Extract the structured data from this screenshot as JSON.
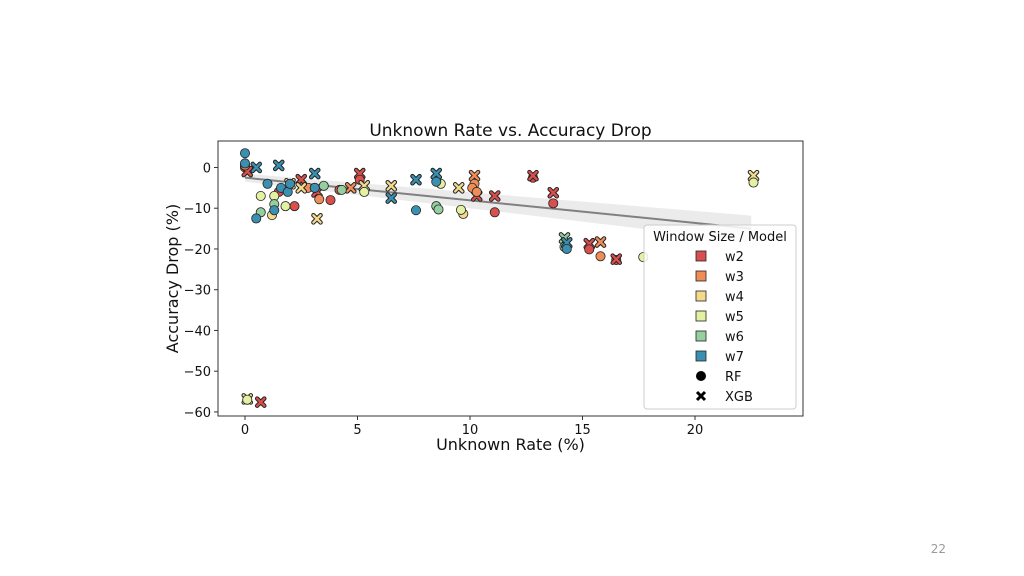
{
  "slide": {
    "page_number": "22"
  },
  "chart_data": {
    "type": "scatter",
    "title": "Unknown Rate vs. Accuracy Drop",
    "xlabel": "Unknown Rate (%)",
    "ylabel": "Accuracy Drop (%)",
    "xlim": [
      -1.2,
      24.8
    ],
    "ylim": [
      -61,
      6.5
    ],
    "xticks": [
      0,
      5,
      10,
      15,
      20
    ],
    "yticks": [
      0,
      -10,
      -20,
      -30,
      -40,
      -50,
      -60
    ],
    "grid": false,
    "legend": {
      "title": "Window Size / Model",
      "placement": "right",
      "entries": [
        {
          "label": "w2",
          "marker": "square",
          "color": "#d7504e"
        },
        {
          "label": "w3",
          "marker": "square",
          "color": "#ef8d59"
        },
        {
          "label": "w4",
          "marker": "square",
          "color": "#f4d98c"
        },
        {
          "label": "w5",
          "marker": "square",
          "color": "#e4f0a2"
        },
        {
          "label": "w6",
          "marker": "square",
          "color": "#95cf9f"
        },
        {
          "label": "w7",
          "marker": "square",
          "color": "#3b8fb0"
        },
        {
          "label": "RF",
          "marker": "circle",
          "color": "#000000"
        },
        {
          "label": "XGB",
          "marker": "x",
          "color": "#000000"
        }
      ]
    },
    "trendline": {
      "from": [
        0,
        -2.5
      ],
      "to": [
        22.5,
        -15
      ],
      "band_color": "#e6e6e6",
      "line_color": "#808080"
    },
    "series": [
      {
        "name": "w2",
        "color": "#d7504e",
        "points": [
          {
            "x": 0,
            "y": 0,
            "m": "o"
          },
          {
            "x": 0.1,
            "y": -1,
            "m": "x"
          },
          {
            "x": 0.7,
            "y": -57.6,
            "m": "x"
          },
          {
            "x": 1.5,
            "y": -6,
            "m": "o"
          },
          {
            "x": 2.2,
            "y": -9.5,
            "m": "o"
          },
          {
            "x": 2.5,
            "y": -3,
            "m": "x"
          },
          {
            "x": 3.2,
            "y": -6,
            "m": "x"
          },
          {
            "x": 3.8,
            "y": -8,
            "m": "o"
          },
          {
            "x": 4.2,
            "y": -5.5,
            "m": "o"
          },
          {
            "x": 5.1,
            "y": -1.5,
            "m": "x"
          },
          {
            "x": 5.1,
            "y": -3,
            "m": "o"
          },
          {
            "x": 10.3,
            "y": -7,
            "m": "x"
          },
          {
            "x": 11.1,
            "y": -7,
            "m": "x"
          },
          {
            "x": 11.1,
            "y": -11,
            "m": "o"
          },
          {
            "x": 12.8,
            "y": -2.5,
            "m": "o"
          },
          {
            "x": 12.8,
            "y": -2,
            "m": "x"
          },
          {
            "x": 13.7,
            "y": -6.2,
            "m": "x"
          },
          {
            "x": 13.7,
            "y": -8.8,
            "m": "o"
          },
          {
            "x": 15.3,
            "y": -18.7,
            "m": "x"
          },
          {
            "x": 15.3,
            "y": -20.1,
            "m": "o"
          },
          {
            "x": 16.5,
            "y": -22.7,
            "m": "o"
          },
          {
            "x": 16.5,
            "y": -22.5,
            "m": "x"
          }
        ]
      },
      {
        "name": "w3",
        "color": "#ef8d59",
        "points": [
          {
            "x": 0,
            "y": 0.5,
            "m": "o"
          },
          {
            "x": 2.8,
            "y": -5,
            "m": "o"
          },
          {
            "x": 3.3,
            "y": -7.8,
            "m": "o"
          },
          {
            "x": 4.7,
            "y": -5,
            "m": "x"
          },
          {
            "x": 10.2,
            "y": -2,
            "m": "x"
          },
          {
            "x": 10.2,
            "y": -4,
            "m": "o"
          },
          {
            "x": 10.1,
            "y": -5,
            "m": "o"
          },
          {
            "x": 10.3,
            "y": -6,
            "m": "o"
          },
          {
            "x": 15.8,
            "y": -18.3,
            "m": "x"
          },
          {
            "x": 15.8,
            "y": -21.8,
            "m": "o"
          }
        ]
      },
      {
        "name": "w4",
        "color": "#f4d98c",
        "points": [
          {
            "x": 0.1,
            "y": -56.8,
            "m": "x"
          },
          {
            "x": 1.2,
            "y": -11.7,
            "m": "o"
          },
          {
            "x": 2,
            "y": -4,
            "m": "x"
          },
          {
            "x": 2.5,
            "y": -5,
            "m": "x"
          },
          {
            "x": 3.2,
            "y": -12.6,
            "m": "x"
          },
          {
            "x": 5.3,
            "y": -4.5,
            "m": "x"
          },
          {
            "x": 6.5,
            "y": -4.5,
            "m": "x"
          },
          {
            "x": 9.5,
            "y": -5,
            "m": "x"
          },
          {
            "x": 9.7,
            "y": -11.4,
            "m": "o"
          },
          {
            "x": 22.6,
            "y": -2,
            "m": "x"
          }
        ]
      },
      {
        "name": "w5",
        "color": "#e4f0a2",
        "points": [
          {
            "x": 0.1,
            "y": -57,
            "m": "o"
          },
          {
            "x": 0.7,
            "y": -7,
            "m": "o"
          },
          {
            "x": 1.3,
            "y": -7,
            "m": "o"
          },
          {
            "x": 1.8,
            "y": -9.5,
            "m": "o"
          },
          {
            "x": 5.3,
            "y": -6,
            "m": "o"
          },
          {
            "x": 8.7,
            "y": -4,
            "m": "o"
          },
          {
            "x": 9.6,
            "y": -10.4,
            "m": "o"
          },
          {
            "x": 17.7,
            "y": -22,
            "m": "o"
          },
          {
            "x": 22.6,
            "y": -3.7,
            "m": "o"
          }
        ]
      },
      {
        "name": "w6",
        "color": "#95cf9f",
        "points": [
          {
            "x": 0.7,
            "y": -11,
            "m": "o"
          },
          {
            "x": 1.3,
            "y": -9,
            "m": "o"
          },
          {
            "x": 3.1,
            "y": -5,
            "m": "o"
          },
          {
            "x": 3.5,
            "y": -4.5,
            "m": "o"
          },
          {
            "x": 4.3,
            "y": -5.5,
            "m": "o"
          },
          {
            "x": 8.5,
            "y": -9.5,
            "m": "o"
          },
          {
            "x": 8.6,
            "y": -10.3,
            "m": "o"
          },
          {
            "x": 14.2,
            "y": -17.3,
            "m": "x"
          },
          {
            "x": 14.2,
            "y": -19.5,
            "m": "o"
          }
        ]
      },
      {
        "name": "w7",
        "color": "#3b8fb0",
        "points": [
          {
            "x": 0,
            "y": 3.5,
            "m": "o"
          },
          {
            "x": 0,
            "y": 1,
            "m": "o"
          },
          {
            "x": 0.5,
            "y": 0,
            "m": "x"
          },
          {
            "x": 0.5,
            "y": -12.5,
            "m": "o"
          },
          {
            "x": 1,
            "y": -4,
            "m": "o"
          },
          {
            "x": 1.3,
            "y": -10.5,
            "m": "o"
          },
          {
            "x": 1.5,
            "y": 0.5,
            "m": "x"
          },
          {
            "x": 1.6,
            "y": -5,
            "m": "o"
          },
          {
            "x": 1.9,
            "y": -6,
            "m": "o"
          },
          {
            "x": 2,
            "y": -4,
            "m": "o"
          },
          {
            "x": 3.1,
            "y": -1.5,
            "m": "x"
          },
          {
            "x": 3.1,
            "y": -5,
            "m": "o"
          },
          {
            "x": 6.5,
            "y": -7.5,
            "m": "x"
          },
          {
            "x": 7.6,
            "y": -3,
            "m": "x"
          },
          {
            "x": 7.6,
            "y": -10.5,
            "m": "o"
          },
          {
            "x": 8.5,
            "y": -1.5,
            "m": "x"
          },
          {
            "x": 8.5,
            "y": -3.5,
            "m": "o"
          },
          {
            "x": 14.3,
            "y": -18.5,
            "m": "x"
          },
          {
            "x": 14.3,
            "y": -20,
            "m": "o"
          }
        ]
      }
    ]
  }
}
